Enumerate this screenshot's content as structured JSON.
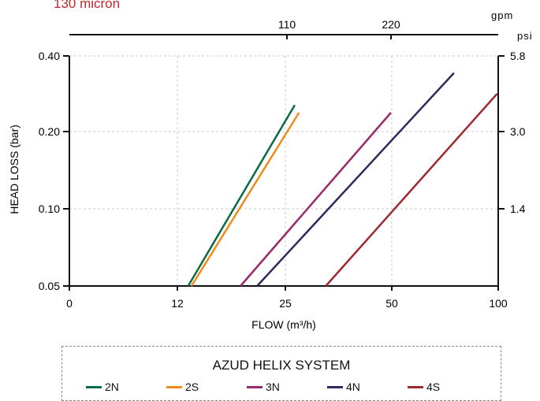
{
  "caption": "130 micron",
  "chart_data": {
    "type": "line",
    "title": "",
    "xlabel": "FLOW (m³/h)",
    "ylabel": "HEAD LOSS  (bar)",
    "top_axis_label": "gpm",
    "right_axis_label": "psi",
    "x_ticks": [
      "0",
      "12",
      "25",
      "50",
      "100"
    ],
    "y_ticks": [
      "0.05",
      "0.10",
      "0.20",
      "0.40"
    ],
    "top_ticks": [
      "110",
      "220"
    ],
    "right_ticks": [
      "1.4",
      "3.0",
      "5.8"
    ],
    "legend_title": "AZUD HELIX SYSTEM",
    "legend_position": "bottom",
    "grid": true,
    "series": [
      {
        "name": "2N",
        "color": "#0a6b45",
        "points": [
          [
            13.3,
            0.05
          ],
          [
            27.2,
            0.27
          ]
        ]
      },
      {
        "name": "2S",
        "color": "#f08a1c",
        "points": [
          [
            13.7,
            0.05
          ],
          [
            28.2,
            0.25
          ]
        ]
      },
      {
        "name": "3N",
        "color": "#9b2a6c",
        "points": [
          [
            19.6,
            0.05
          ],
          [
            49.8,
            0.25
          ]
        ]
      },
      {
        "name": "4N",
        "color": "#2e2a5c",
        "points": [
          [
            21.6,
            0.05
          ],
          [
            79.2,
            0.355
          ]
        ]
      },
      {
        "name": "4S",
        "color": "#9e2a2e",
        "points": [
          [
            34.5,
            0.05
          ],
          [
            99.5,
            0.3
          ]
        ]
      }
    ]
  }
}
